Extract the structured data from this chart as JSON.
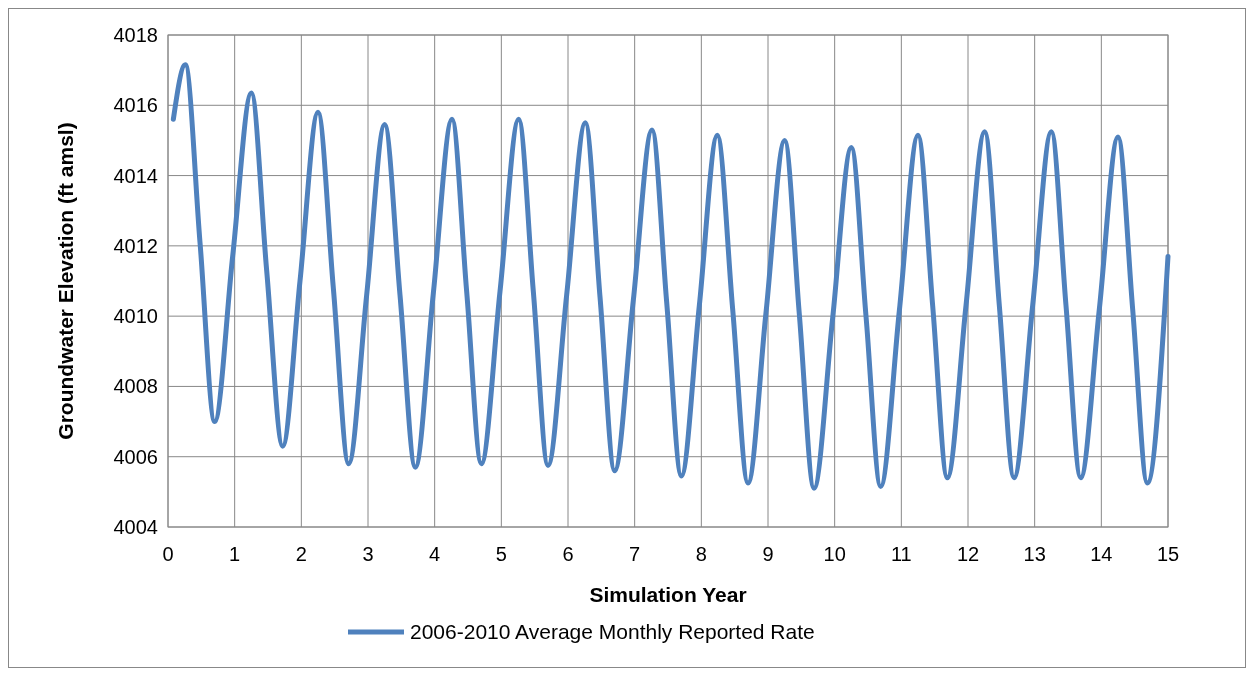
{
  "chart_data": {
    "type": "line",
    "xlabel": "Simulation Year",
    "ylabel": "Groundwater Elevation (ft amsl)",
    "xlim": [
      0,
      15
    ],
    "xticks": [
      0,
      1,
      2,
      3,
      4,
      5,
      6,
      7,
      8,
      9,
      10,
      11,
      12,
      13,
      14,
      15
    ],
    "ylim": [
      4004,
      4018
    ],
    "yticks": [
      4004,
      4006,
      4008,
      4010,
      4012,
      4014,
      4016,
      4018
    ],
    "grid": true,
    "legend": "bottom",
    "marker": "none",
    "line_style": "solid",
    "series": [
      {
        "name": "2006-2010 Average Monthly Reported Rate",
        "color": "#4f81bd",
        "x": [
          0.08,
          0.26,
          0.48,
          0.7,
          0.97,
          1.25,
          1.48,
          1.72,
          1.98,
          2.25,
          2.48,
          2.71,
          2.98,
          3.25,
          3.48,
          3.71,
          3.98,
          4.26,
          4.48,
          4.7,
          4.98,
          5.26,
          5.48,
          5.7,
          5.98,
          6.26,
          6.48,
          6.7,
          6.98,
          7.26,
          7.48,
          7.7,
          7.97,
          8.24,
          8.47,
          8.7,
          8.97,
          9.25,
          9.47,
          9.69,
          9.97,
          10.25,
          10.47,
          10.69,
          10.97,
          11.25,
          11.47,
          11.69,
          11.97,
          12.25,
          12.47,
          12.69,
          12.97,
          13.25,
          13.47,
          13.69,
          13.97,
          14.25,
          14.47,
          14.69,
          15.0
        ],
        "values": [
          4015.6,
          4017.15,
          4012.1,
          4007.0,
          4011.7,
          4016.35,
          4011.3,
          4006.3,
          4011.0,
          4015.8,
          4010.8,
          4005.8,
          4010.6,
          4015.45,
          4010.6,
          4005.7,
          4010.65,
          4015.6,
          4010.7,
          4005.8,
          4010.7,
          4015.6,
          4010.7,
          4005.75,
          4010.6,
          4015.5,
          4010.55,
          4005.6,
          4010.45,
          4015.3,
          4010.4,
          4005.45,
          4010.3,
          4015.15,
          4010.2,
          4005.25,
          4010.1,
          4015.0,
          4010.05,
          4005.1,
          4009.95,
          4014.8,
          4010.0,
          4005.15,
          4010.15,
          4015.15,
          4010.3,
          4005.4,
          4010.3,
          4015.25,
          4010.3,
          4005.4,
          4010.3,
          4015.25,
          4010.3,
          4005.4,
          4010.2,
          4015.1,
          4010.2,
          4005.25,
          4011.7
        ]
      }
    ]
  }
}
